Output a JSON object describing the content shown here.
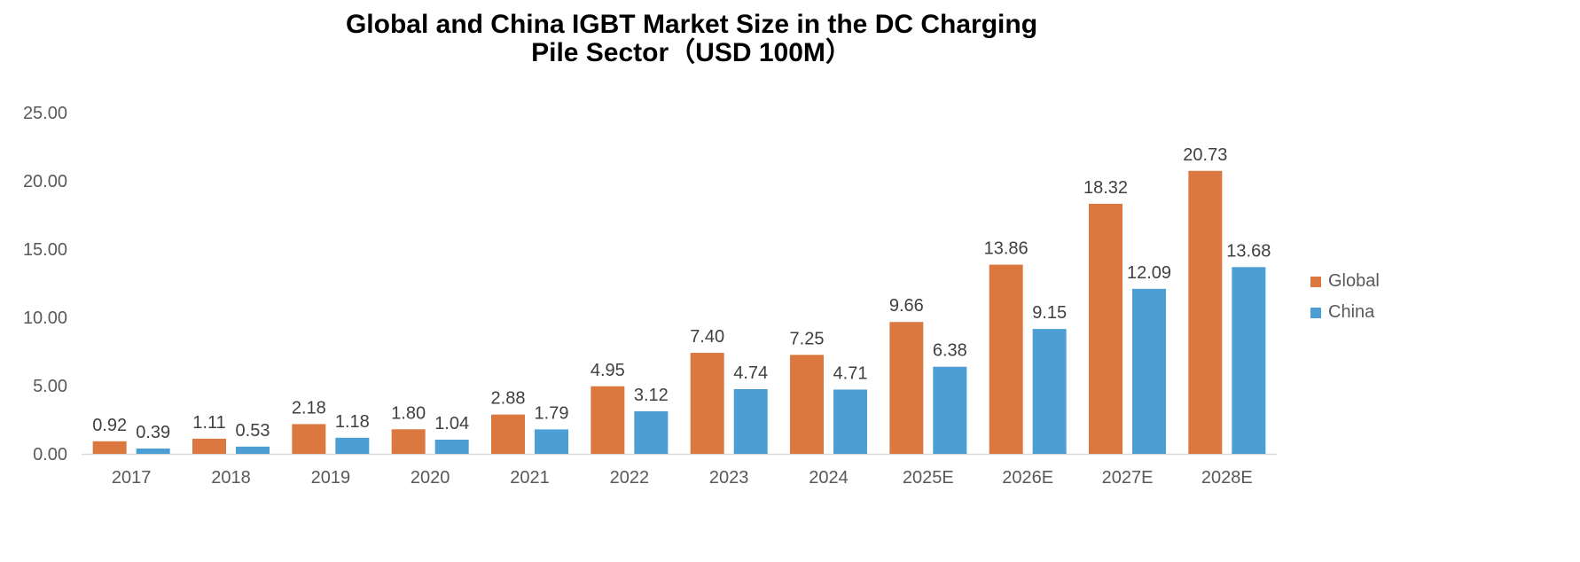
{
  "chart_data": {
    "type": "bar",
    "title": "Global and China IGBT Market Size in the DC Charging Pile Sector（USD 100M）",
    "title_lines": [
      "Global and China IGBT Market Size in the DC Charging",
      "Pile Sector（USD 100M）"
    ],
    "categories": [
      "2017",
      "2018",
      "2019",
      "2020",
      "2021",
      "2022",
      "2023",
      "2024",
      "2025E",
      "2026E",
      "2027E",
      "2028E"
    ],
    "series": [
      {
        "name": "Global",
        "color": "#DB7840",
        "values": [
          0.92,
          1.11,
          2.18,
          1.8,
          2.88,
          4.95,
          7.4,
          7.25,
          9.66,
          13.86,
          18.32,
          20.73
        ]
      },
      {
        "name": "China",
        "color": "#4B9FD5",
        "values": [
          0.39,
          0.53,
          1.18,
          1.04,
          1.79,
          3.12,
          4.74,
          4.71,
          6.38,
          9.15,
          12.09,
          13.68
        ]
      }
    ],
    "xlabel": "",
    "ylabel": "",
    "ylim": [
      0,
      25
    ],
    "yticks": [
      "0.00",
      "5.00",
      "10.00",
      "15.00",
      "20.00",
      "25.00"
    ],
    "grid": false,
    "legend_position": "right"
  }
}
